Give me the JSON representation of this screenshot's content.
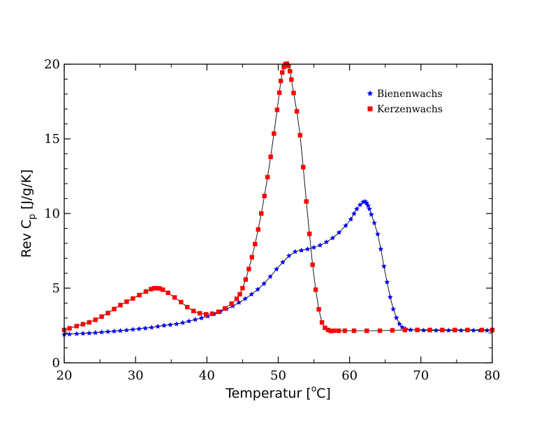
{
  "chart_data": {
    "type": "line",
    "title": "",
    "xlabel": {
      "main": "Temperatur [",
      "sup": "o",
      "tail": "C]"
    },
    "ylabel": {
      "main": "Rev C",
      "sub": "p",
      "tail": " [J/g/K]"
    },
    "xlim": [
      20,
      80
    ],
    "ylim": [
      0,
      20
    ],
    "xticks": [
      20,
      30,
      40,
      50,
      60,
      70,
      80
    ],
    "yticks": [
      0,
      5,
      10,
      15,
      20
    ],
    "x_tick_labels": [
      "20",
      "30",
      "40",
      "50",
      "60",
      "70",
      "80"
    ],
    "y_tick_labels": [
      "0",
      "5",
      "10",
      "15",
      "20"
    ],
    "grid": false,
    "legend_position": "top-right",
    "series": [
      {
        "name": "Bienenwachs",
        "color": "#0000ff",
        "marker": "star",
        "points": [
          [
            20,
            1.9
          ],
          [
            22,
            1.95
          ],
          [
            24,
            2.0
          ],
          [
            26,
            2.08
          ],
          [
            28,
            2.15
          ],
          [
            30,
            2.25
          ],
          [
            32,
            2.35
          ],
          [
            34,
            2.5
          ],
          [
            36,
            2.62
          ],
          [
            38,
            2.85
          ],
          [
            40,
            3.1
          ],
          [
            42,
            3.45
          ],
          [
            44,
            3.9
          ],
          [
            46,
            4.5
          ],
          [
            48,
            5.3
          ],
          [
            50,
            6.4
          ],
          [
            52,
            7.35
          ],
          [
            54,
            7.6
          ],
          [
            56,
            7.9
          ],
          [
            58,
            8.5
          ],
          [
            60,
            9.5
          ],
          [
            61,
            10.3
          ],
          [
            62,
            10.8
          ],
          [
            62.5,
            10.6
          ],
          [
            63,
            10.0
          ],
          [
            64,
            8.5
          ],
          [
            65,
            6.0
          ],
          [
            66,
            3.8
          ],
          [
            67,
            2.6
          ],
          [
            68,
            2.25
          ],
          [
            70,
            2.18
          ],
          [
            72,
            2.17
          ],
          [
            74,
            2.17
          ],
          [
            76,
            2.17
          ],
          [
            78,
            2.17
          ],
          [
            80,
            2.17
          ]
        ]
      },
      {
        "name": "Kerzenwachs",
        "color": "#ff0000",
        "marker": "square",
        "points": [
          [
            20,
            2.2
          ],
          [
            22,
            2.5
          ],
          [
            24,
            2.8
          ],
          [
            26,
            3.3
          ],
          [
            28,
            3.9
          ],
          [
            30,
            4.4
          ],
          [
            32,
            4.9
          ],
          [
            33,
            5.0
          ],
          [
            34,
            4.85
          ],
          [
            36,
            4.2
          ],
          [
            38,
            3.5
          ],
          [
            40,
            3.25
          ],
          [
            42,
            3.5
          ],
          [
            44,
            4.2
          ],
          [
            45,
            5.0
          ],
          [
            46,
            6.5
          ],
          [
            47,
            8.5
          ],
          [
            48,
            11.0
          ],
          [
            49,
            14.0
          ],
          [
            50,
            17.5
          ],
          [
            50.5,
            19.3
          ],
          [
            51,
            20.0
          ],
          [
            51.5,
            19.8
          ],
          [
            52,
            18.5
          ],
          [
            53,
            15.5
          ],
          [
            54,
            10.5
          ],
          [
            55,
            5.8
          ],
          [
            56,
            2.9
          ],
          [
            57,
            2.2
          ],
          [
            58,
            2.15
          ],
          [
            60,
            2.15
          ],
          [
            64,
            2.15
          ],
          [
            68,
            2.2
          ],
          [
            72,
            2.2
          ],
          [
            76,
            2.2
          ],
          [
            80,
            2.2
          ]
        ]
      }
    ]
  }
}
